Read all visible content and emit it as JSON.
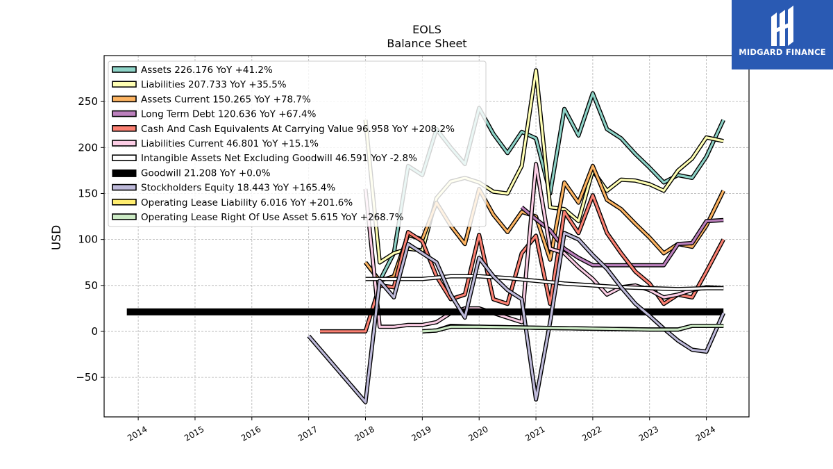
{
  "brand": {
    "name": "MIDGARD FINANCE",
    "bg": "#2a5ab3"
  },
  "chart_data": {
    "type": "line",
    "title": "EOLS",
    "subtitle": "Balance  Sheet",
    "ylabel": "USD",
    "xlabel": "",
    "xlim": [
      2013.4,
      2024.75
    ],
    "ylim": [
      -93,
      300
    ],
    "yticks": [
      -50,
      0,
      50,
      100,
      150,
      200,
      250
    ],
    "xticks": [
      "2014",
      "2015",
      "2016",
      "2017",
      "2018",
      "2019",
      "2020",
      "2021",
      "2022",
      "2023",
      "2024"
    ],
    "grid": true,
    "legend_position": "top-left",
    "series": [
      {
        "name": "Assets",
        "legend": "Assets  226.176 YoY +41.2%",
        "color": "#8dd3c7",
        "points": [
          [
            2018.0,
            75
          ],
          [
            2018.25,
            55
          ],
          [
            2018.5,
            85
          ],
          [
            2018.75,
            180
          ],
          [
            2019.0,
            170
          ],
          [
            2019.25,
            220
          ],
          [
            2019.5,
            200
          ],
          [
            2019.75,
            182
          ],
          [
            2020.0,
            243
          ],
          [
            2020.25,
            215
          ],
          [
            2020.5,
            194
          ],
          [
            2020.75,
            217
          ],
          [
            2021.0,
            210
          ],
          [
            2021.25,
            150
          ],
          [
            2021.5,
            242
          ],
          [
            2021.75,
            213
          ],
          [
            2022.0,
            259
          ],
          [
            2022.25,
            220
          ],
          [
            2022.5,
            210
          ],
          [
            2022.75,
            193
          ],
          [
            2023.0,
            178
          ],
          [
            2023.25,
            162
          ],
          [
            2023.5,
            170
          ],
          [
            2023.75,
            167
          ],
          [
            2024.0,
            190
          ],
          [
            2024.3,
            230
          ]
        ]
      },
      {
        "name": "Liabilities",
        "legend": "Liabilities  207.733 YoY +35.5%",
        "color": "#ffffb3",
        "points": [
          [
            2018.0,
            230
          ],
          [
            2018.25,
            75
          ],
          [
            2018.5,
            85
          ],
          [
            2018.75,
            90
          ],
          [
            2019.0,
            88
          ],
          [
            2019.25,
            145
          ],
          [
            2019.5,
            163
          ],
          [
            2019.75,
            167
          ],
          [
            2020.0,
            162
          ],
          [
            2020.25,
            152
          ],
          [
            2020.5,
            150
          ],
          [
            2020.75,
            180
          ],
          [
            2021.0,
            284
          ],
          [
            2021.25,
            135
          ],
          [
            2021.5,
            133
          ],
          [
            2021.75,
            120
          ],
          [
            2022.0,
            175
          ],
          [
            2022.25,
            153
          ],
          [
            2022.5,
            165
          ],
          [
            2022.75,
            164
          ],
          [
            2023.0,
            160
          ],
          [
            2023.25,
            153
          ],
          [
            2023.5,
            175
          ],
          [
            2023.75,
            188
          ],
          [
            2024.0,
            211
          ],
          [
            2024.3,
            207
          ]
        ]
      },
      {
        "name": "Assets Current",
        "legend": "Assets Current  150.265 YoY +78.7%",
        "color": "#fdb462",
        "points": [
          [
            2018.0,
            75
          ],
          [
            2018.25,
            55
          ],
          [
            2018.5,
            60
          ],
          [
            2018.75,
            105
          ],
          [
            2019.0,
            100
          ],
          [
            2019.25,
            140
          ],
          [
            2019.5,
            115
          ],
          [
            2019.75,
            95
          ],
          [
            2020.0,
            155
          ],
          [
            2020.25,
            127
          ],
          [
            2020.5,
            108
          ],
          [
            2020.75,
            130
          ],
          [
            2021.0,
            125
          ],
          [
            2021.25,
            78
          ],
          [
            2021.5,
            162
          ],
          [
            2021.75,
            140
          ],
          [
            2022.0,
            180
          ],
          [
            2022.25,
            143
          ],
          [
            2022.5,
            133
          ],
          [
            2022.75,
            117
          ],
          [
            2023.0,
            102
          ],
          [
            2023.25,
            85
          ],
          [
            2023.5,
            95
          ],
          [
            2023.75,
            92
          ],
          [
            2024.0,
            115
          ],
          [
            2024.3,
            153
          ]
        ]
      },
      {
        "name": "Long Term Debt",
        "legend": "Long Term Debt  120.636 YoY +67.4%",
        "color": "#bc80bd",
        "points": [
          [
            2020.75,
            135
          ],
          [
            2021.0,
            122
          ],
          [
            2021.25,
            110
          ],
          [
            2021.5,
            90
          ],
          [
            2021.75,
            80
          ],
          [
            2022.0,
            72
          ],
          [
            2022.5,
            72
          ],
          [
            2023.0,
            72
          ],
          [
            2023.25,
            72
          ],
          [
            2023.5,
            95
          ],
          [
            2023.75,
            96
          ],
          [
            2024.0,
            120
          ],
          [
            2024.3,
            121
          ]
        ]
      },
      {
        "name": "Cash And Cash Equivalents At Carrying Value",
        "legend": "Cash And Cash Equivalents At Carrying Value  96.958 YoY +208.2%",
        "color": "#fb8072",
        "points": [
          [
            2017.2,
            0
          ],
          [
            2017.6,
            0
          ],
          [
            2018.0,
            0
          ],
          [
            2018.25,
            50
          ],
          [
            2018.5,
            48
          ],
          [
            2018.75,
            108
          ],
          [
            2019.0,
            98
          ],
          [
            2019.25,
            60
          ],
          [
            2019.5,
            35
          ],
          [
            2019.75,
            40
          ],
          [
            2020.0,
            105
          ],
          [
            2020.25,
            35
          ],
          [
            2020.5,
            30
          ],
          [
            2020.75,
            85
          ],
          [
            2021.0,
            104
          ],
          [
            2021.25,
            30
          ],
          [
            2021.5,
            130
          ],
          [
            2021.75,
            107
          ],
          [
            2022.0,
            148
          ],
          [
            2022.25,
            107
          ],
          [
            2022.5,
            85
          ],
          [
            2022.75,
            65
          ],
          [
            2023.0,
            52
          ],
          [
            2023.25,
            30
          ],
          [
            2023.5,
            40
          ],
          [
            2023.75,
            37
          ],
          [
            2024.0,
            65
          ],
          [
            2024.3,
            100
          ]
        ]
      },
      {
        "name": "Liabilities Current",
        "legend": "Liabilities Current  46.801 YoY +15.1%",
        "color": "#fccde5",
        "points": [
          [
            2018.0,
            155
          ],
          [
            2018.25,
            5
          ],
          [
            2018.5,
            5
          ],
          [
            2018.75,
            7
          ],
          [
            2019.0,
            7
          ],
          [
            2019.25,
            10
          ],
          [
            2019.5,
            20
          ],
          [
            2019.75,
            25
          ],
          [
            2020.0,
            25
          ],
          [
            2020.25,
            20
          ],
          [
            2020.5,
            15
          ],
          [
            2020.75,
            10
          ],
          [
            2021.0,
            182
          ],
          [
            2021.25,
            90
          ],
          [
            2021.5,
            85
          ],
          [
            2021.75,
            70
          ],
          [
            2022.0,
            57
          ],
          [
            2022.25,
            40
          ],
          [
            2022.5,
            48
          ],
          [
            2022.75,
            50
          ],
          [
            2023.0,
            45
          ],
          [
            2023.25,
            37
          ],
          [
            2023.5,
            40
          ],
          [
            2023.75,
            45
          ],
          [
            2024.0,
            48
          ],
          [
            2024.3,
            47
          ]
        ]
      },
      {
        "name": "Intangible Assets Net Excluding Goodwill",
        "legend": "Intangible Assets Net Excluding Goodwill  46.591 YoY -2.8%",
        "color": "#ffffff",
        "points": [
          [
            2018.0,
            57
          ],
          [
            2018.5,
            57
          ],
          [
            2019.0,
            57
          ],
          [
            2019.5,
            60
          ],
          [
            2020.0,
            60
          ],
          [
            2020.5,
            58
          ],
          [
            2021.0,
            55
          ],
          [
            2021.5,
            52
          ],
          [
            2022.0,
            50
          ],
          [
            2022.5,
            48
          ],
          [
            2023.0,
            47
          ],
          [
            2023.5,
            46
          ],
          [
            2024.0,
            47
          ],
          [
            2024.3,
            47
          ]
        ]
      },
      {
        "name": "Goodwill",
        "legend": "Goodwill  21.208 YoY +0.0%",
        "color": "#000000",
        "points": [
          [
            2013.8,
            21.2
          ],
          [
            2024.3,
            21.2
          ]
        ]
      },
      {
        "name": "Stockholders Equity",
        "legend": "Stockholders Equity  18.443 YoY +165.4%",
        "color": "#bebada",
        "points": [
          [
            2017.0,
            -5
          ],
          [
            2018.0,
            -77
          ],
          [
            2018.25,
            55
          ],
          [
            2018.5,
            37
          ],
          [
            2018.75,
            95
          ],
          [
            2019.0,
            85
          ],
          [
            2019.25,
            75
          ],
          [
            2019.5,
            40
          ],
          [
            2019.75,
            15
          ],
          [
            2020.0,
            80
          ],
          [
            2020.25,
            60
          ],
          [
            2020.5,
            45
          ],
          [
            2020.75,
            35
          ],
          [
            2021.0,
            -74
          ],
          [
            2021.25,
            10
          ],
          [
            2021.5,
            107
          ],
          [
            2021.75,
            100
          ],
          [
            2022.0,
            83
          ],
          [
            2022.25,
            68
          ],
          [
            2022.5,
            48
          ],
          [
            2022.75,
            30
          ],
          [
            2023.0,
            17
          ],
          [
            2023.25,
            3
          ],
          [
            2023.5,
            -10
          ],
          [
            2023.75,
            -20
          ],
          [
            2024.0,
            -22
          ],
          [
            2024.3,
            20
          ]
        ]
      },
      {
        "name": "Operating Lease Liability",
        "legend": "Operating Lease Liability  6.016 YoY +201.6%",
        "color": "#ffed6f",
        "points": [
          [
            2019.0,
            0
          ],
          [
            2019.25,
            1
          ],
          [
            2019.5,
            6
          ],
          [
            2020.0,
            5
          ],
          [
            2021.0,
            4
          ],
          [
            2022.0,
            3
          ],
          [
            2023.0,
            2
          ],
          [
            2023.5,
            2
          ],
          [
            2023.75,
            6
          ],
          [
            2024.0,
            6
          ],
          [
            2024.3,
            6
          ]
        ]
      },
      {
        "name": "Operating Lease Right Of Use Asset",
        "legend": "Operating Lease Right Of Use Asset  5.615 YoY +268.7%",
        "color": "#ccebc5",
        "points": [
          [
            2019.0,
            0
          ],
          [
            2019.25,
            1
          ],
          [
            2019.5,
            5
          ],
          [
            2020.0,
            5
          ],
          [
            2021.0,
            4
          ],
          [
            2022.0,
            3
          ],
          [
            2023.0,
            2
          ],
          [
            2023.5,
            2
          ],
          [
            2023.75,
            6
          ],
          [
            2024.0,
            6
          ],
          [
            2024.3,
            6
          ]
        ]
      }
    ]
  }
}
